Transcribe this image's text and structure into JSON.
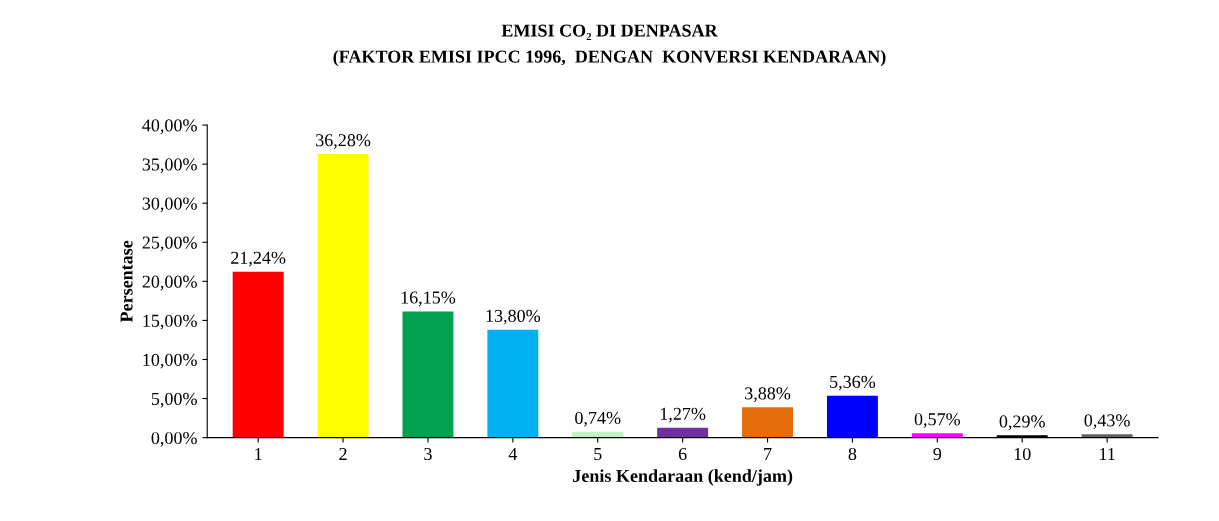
{
  "chart_data": {
    "type": "bar",
    "title": "EMISI CO₂ DI DENPASAR",
    "subtitle": "(FAKTOR EMISI IPCC 1996,  DENGAN  KONVERSI KENDARAAN)",
    "xlabel": "Jenis Kendaraan (kend/jam)",
    "ylabel": "Persentase",
    "categories": [
      "1",
      "2",
      "3",
      "4",
      "5",
      "6",
      "7",
      "8",
      "9",
      "10",
      "11"
    ],
    "values": [
      21.24,
      36.28,
      16.15,
      13.8,
      0.74,
      1.27,
      3.88,
      5.36,
      0.57,
      0.29,
      0.43
    ],
    "colors": [
      "#ff0000",
      "#ffff00",
      "#00a050",
      "#00b0f0",
      "#c6efc6",
      "#7030a0",
      "#e46c0a",
      "#0000ff",
      "#ff00ff",
      "#000000",
      "#606060"
    ],
    "value_labels": [
      "21,24%",
      "36,28%",
      "16,15%",
      "13,80%",
      "0,74%",
      "1,27%",
      "3,88%",
      "5,36%",
      "0,57%",
      "0,29%",
      "0,43%"
    ],
    "ylim": [
      0,
      40
    ],
    "yticks": [
      {
        "value": 0,
        "label": "0,00%"
      },
      {
        "value": 5,
        "label": "5,00%"
      },
      {
        "value": 10,
        "label": "10,00%"
      },
      {
        "value": 15,
        "label": "15,00%"
      },
      {
        "value": 20,
        "label": "20,00%"
      },
      {
        "value": 25,
        "label": "25,00%"
      },
      {
        "value": 30,
        "label": "30,00%"
      },
      {
        "value": 35,
        "label": "35,00%"
      },
      {
        "value": 40,
        "label": "40,00%"
      }
    ],
    "grid": false,
    "legend": false
  }
}
